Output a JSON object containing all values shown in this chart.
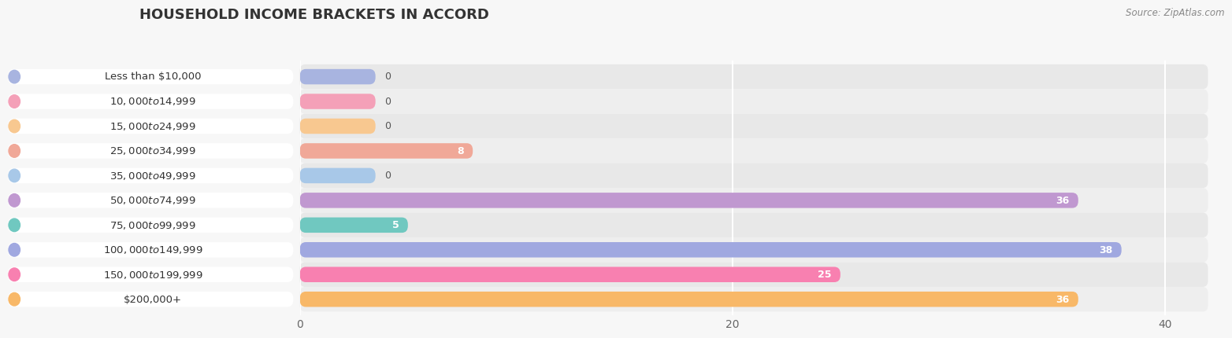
{
  "title": "HOUSEHOLD INCOME BRACKETS IN ACCORD",
  "source": "Source: ZipAtlas.com",
  "categories": [
    "Less than $10,000",
    "$10,000 to $14,999",
    "$15,000 to $24,999",
    "$25,000 to $34,999",
    "$35,000 to $49,999",
    "$50,000 to $74,999",
    "$75,000 to $99,999",
    "$100,000 to $149,999",
    "$150,000 to $199,999",
    "$200,000+"
  ],
  "values": [
    0,
    0,
    0,
    8,
    0,
    36,
    5,
    38,
    25,
    36
  ],
  "bar_colors": [
    "#a8b4e0",
    "#f4a0b8",
    "#f8c890",
    "#f0a898",
    "#a8c8e8",
    "#c098d0",
    "#70c8c0",
    "#a0a8e0",
    "#f880b0",
    "#f8b868"
  ],
  "label_bg_color": "#f0f0f0",
  "background_color": "#f7f7f7",
  "bar_bg_color": "#e8e8e8",
  "bar_bg_color2": "#eeeeee",
  "xlim": [
    0,
    42
  ],
  "xticks": [
    0,
    20,
    40
  ],
  "title_fontsize": 13,
  "label_fontsize": 9.5,
  "value_fontsize": 9,
  "tick_fontsize": 10
}
